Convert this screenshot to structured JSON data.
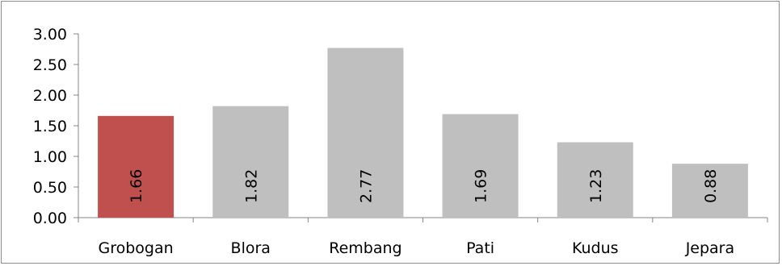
{
  "chart_data": {
    "type": "bar",
    "categories": [
      "Grobogan",
      "Blora",
      "Rembang",
      "Pati",
      "Kudus",
      "Jepara"
    ],
    "values": [
      1.66,
      1.82,
      2.77,
      1.69,
      1.23,
      0.88
    ],
    "value_labels": [
      "1.66",
      "1.82",
      "2.77",
      "1.69",
      "1.23",
      "0.88"
    ],
    "yticks": [
      "0.00",
      "0.50",
      "1.00",
      "1.50",
      "2.00",
      "2.50",
      "3.00"
    ],
    "ylim": [
      0,
      3.0
    ],
    "title": "",
    "xlabel": "",
    "ylabel": "",
    "grid": false,
    "legend": "none",
    "colors": {
      "highlight": "#c0504d",
      "default": "#bfbfbf",
      "axis": "#868686"
    },
    "highlight_index": 0
  }
}
